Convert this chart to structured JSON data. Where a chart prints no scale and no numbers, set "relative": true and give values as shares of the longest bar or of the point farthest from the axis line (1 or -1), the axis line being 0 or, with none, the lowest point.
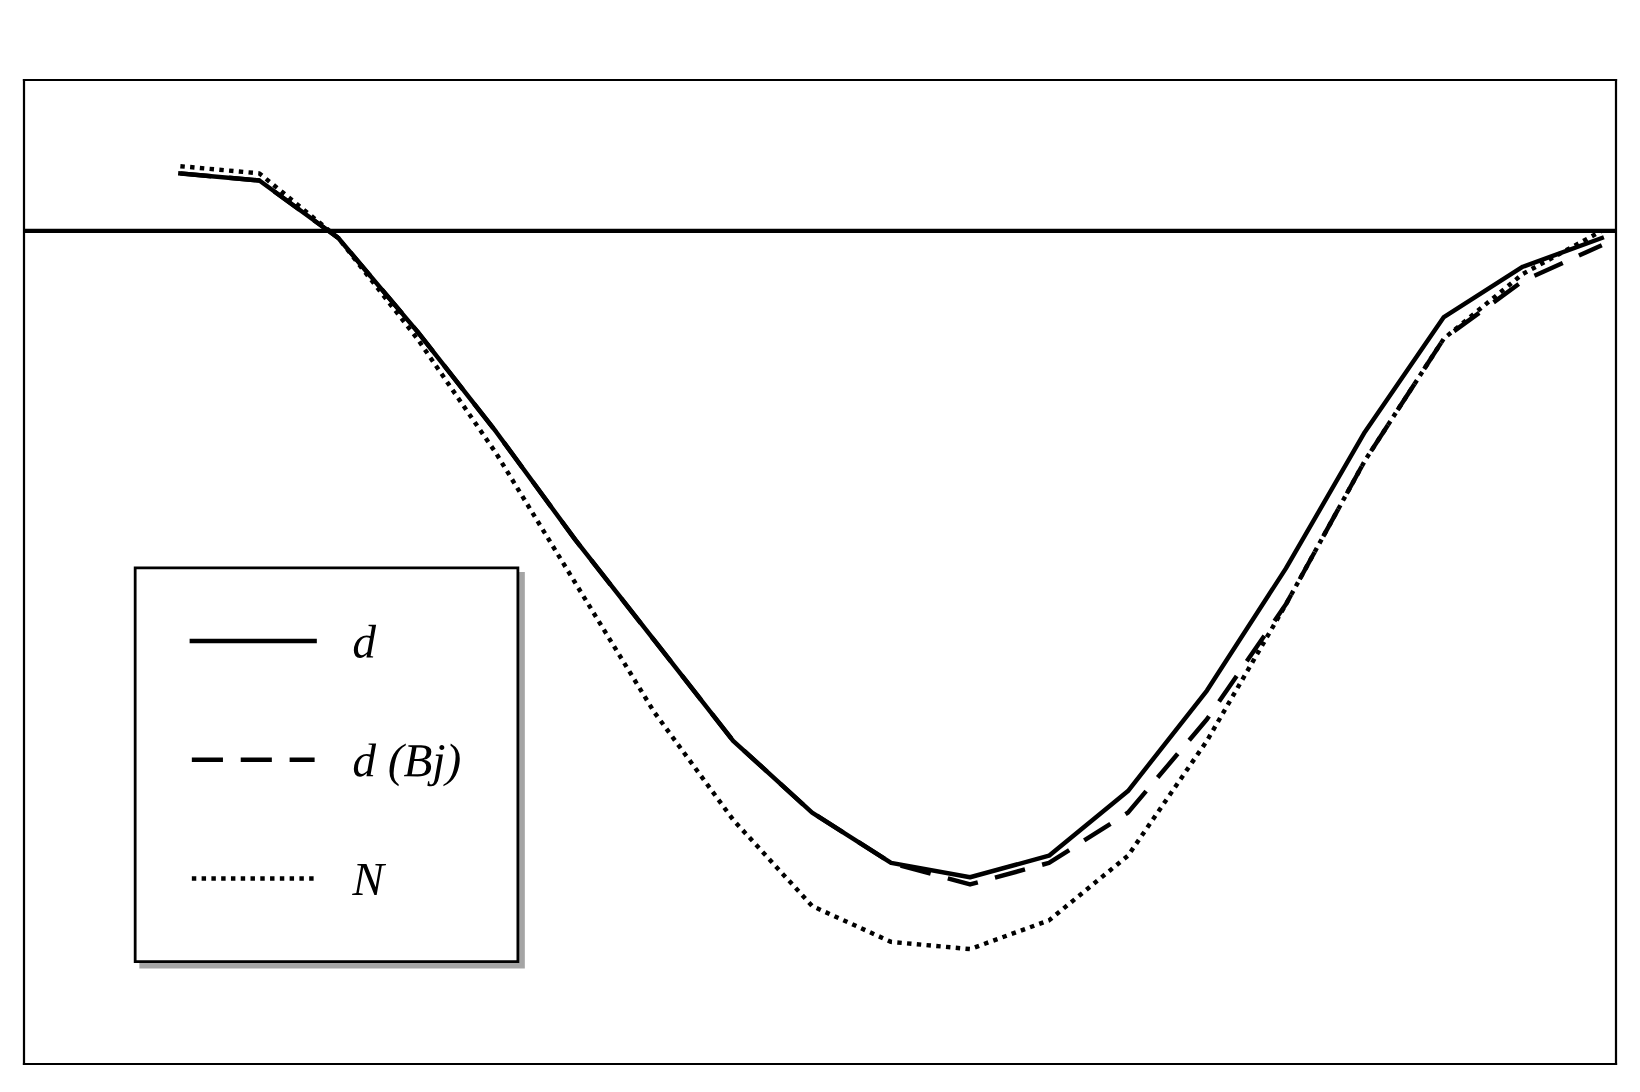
{
  "chart_data": {
    "type": "line",
    "relative": true,
    "categories": [
      null,
      null,
      null,
      null,
      null,
      null,
      null,
      null,
      null,
      null,
      null,
      null,
      null,
      null,
      null,
      null,
      null,
      null,
      null
    ],
    "series": [
      {
        "name": "d",
        "color": "#000000",
        "line_style": "solid",
        "values": [
          0.08,
          0.07,
          -0.01,
          -0.14,
          -0.28,
          -0.43,
          -0.57,
          -0.71,
          -0.81,
          -0.88,
          -0.9,
          -0.87,
          -0.78,
          -0.64,
          -0.47,
          -0.28,
          -0.12,
          -0.05,
          -0.01
        ]
      },
      {
        "name": "d (Bj)",
        "color": "#000000",
        "line_style": "dashed",
        "values": [
          0.08,
          0.07,
          -0.01,
          -0.14,
          -0.28,
          -0.43,
          -0.57,
          -0.71,
          -0.81,
          -0.88,
          -0.91,
          -0.88,
          -0.81,
          -0.68,
          -0.52,
          -0.32,
          -0.15,
          -0.07,
          -0.02
        ]
      },
      {
        "name": "N",
        "color": "#000000",
        "line_style": "dotted",
        "values": [
          0.09,
          0.08,
          -0.01,
          -0.15,
          -0.31,
          -0.49,
          -0.67,
          -0.82,
          -0.94,
          -0.99,
          -1,
          -0.96,
          -0.87,
          -0.71,
          -0.52,
          -0.32,
          -0.15,
          -0.06,
          0.0
        ]
      }
    ],
    "legend": "bottom left"
  }
}
